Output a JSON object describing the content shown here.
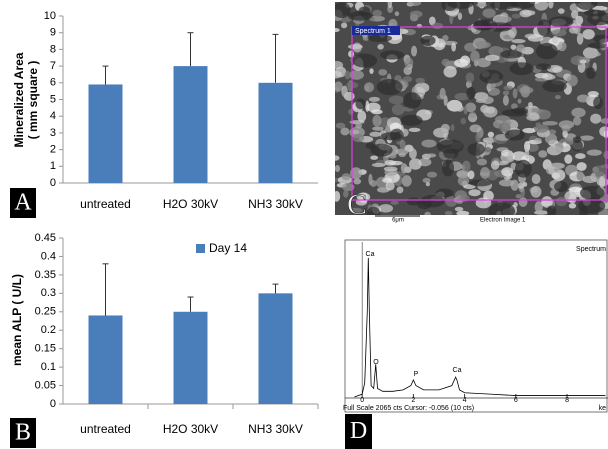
{
  "chart_data": [
    {
      "type": "bar",
      "panel_label": "A",
      "ylabel_lines": [
        "Mineralized Area",
        "( mm square )"
      ],
      "categories": [
        "untreated",
        "H2O 30kV",
        "NH3 30kV"
      ],
      "series": [
        {
          "name": null,
          "color": "#4a7ebb",
          "values": [
            5.9,
            7.0,
            6.0
          ],
          "errors": [
            1.1,
            2.0,
            2.9
          ]
        }
      ],
      "ylim": [
        0,
        10
      ],
      "yticks": [
        0,
        1,
        2,
        3,
        4,
        5,
        6,
        7,
        8,
        9,
        10
      ]
    },
    {
      "type": "bar",
      "panel_label": "B",
      "ylabel_lines": [
        "mean ALP ( U/L)"
      ],
      "categories": [
        "untreated",
        "H2O 30kV",
        "NH3 30kV"
      ],
      "series": [
        {
          "name": "Day 14",
          "color": "#4a7ebb",
          "values": [
            0.24,
            0.25,
            0.3
          ],
          "errors": [
            0.14,
            0.04,
            0.025
          ]
        }
      ],
      "ylim": [
        0,
        0.45
      ],
      "yticks": [
        0,
        0.05,
        0.1,
        0.15,
        0.2,
        0.25,
        0.3,
        0.35,
        0.4,
        0.45
      ],
      "legend": "top"
    },
    {
      "type": "line",
      "panel_label": "D",
      "title": "Spectrum",
      "footer": "Full Scale 2065 cts Cursor: -0.056 (10 cts)",
      "xunit": "ke",
      "x": [
        -0.3,
        0,
        0.1,
        0.2,
        0.24,
        0.28,
        0.35,
        0.45,
        0.53,
        0.6,
        0.8,
        1.2,
        1.6,
        1.9,
        2.0,
        2.1,
        2.4,
        3.0,
        3.5,
        3.65,
        3.7,
        3.8,
        4.0,
        5,
        6,
        7,
        8,
        9.5
      ],
      "series": [
        {
          "name": null,
          "color": "#000000",
          "values": [
            0,
            2,
            10,
            60,
            98,
            60,
            8,
            6,
            23,
            6,
            4,
            4,
            5,
            8,
            12,
            8,
            5,
            5,
            8,
            14,
            12,
            5,
            3,
            2,
            1,
            1,
            1,
            1
          ]
        }
      ],
      "peak_labels": [
        "Ca",
        "O",
        "P",
        "Ca"
      ],
      "xlim": [
        -0.67,
        9.6
      ],
      "xticks": [
        0,
        2,
        4,
        6,
        8
      ],
      "ylim": [
        0,
        100
      ]
    }
  ],
  "image_panel": {
    "label": "C",
    "region_label": "Spectrum 1",
    "scale": "6μm",
    "caption": "Electron Image 1"
  }
}
